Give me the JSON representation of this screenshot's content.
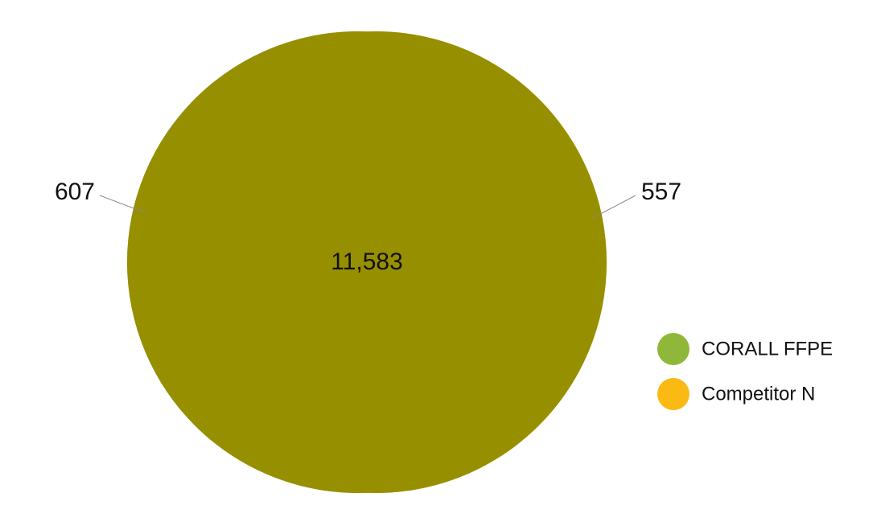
{
  "chart_data": {
    "type": "venn",
    "sets": [
      {
        "name": "CORALL FFPE",
        "color": "#8fb83a",
        "value": 607
      },
      {
        "name": "Competitor N",
        "color": "#fbb914",
        "value": 557
      }
    ],
    "overlap": {
      "value": 11583,
      "value_label": "11,583",
      "color": "#968f00"
    }
  }
}
